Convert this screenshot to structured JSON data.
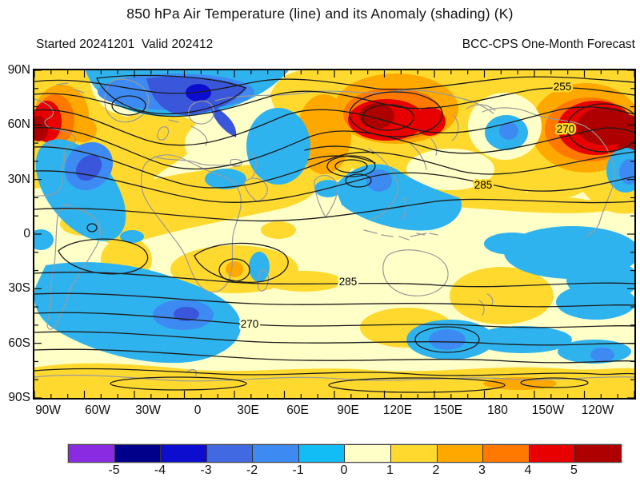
{
  "header": {
    "title": "850 hPa Air Temperature (line) and its Anomaly (shading) (K)",
    "run_info": "Started 20241201  Valid 202412",
    "model_info": "BCC-CPS One-Month Forecast"
  },
  "axes": {
    "lat_labels": [
      "90N",
      "60N",
      "30N",
      "0",
      "30S",
      "60S",
      "90S"
    ],
    "lon_labels": [
      "90W",
      "60W",
      "30W",
      "0",
      "30E",
      "60E",
      "90E",
      "120E",
      "150E",
      "180",
      "150W",
      "120W"
    ]
  },
  "contour_labels": [
    "255",
    "270",
    "285",
    "285",
    "270"
  ],
  "colorbar": {
    "tick_labels": [
      "-5",
      "-4",
      "-3",
      "-2",
      "-1",
      "0",
      "1",
      "2",
      "3",
      "4",
      "5"
    ],
    "colors": [
      "#8A2BE2",
      "#00008B",
      "#0D0DD0",
      "#4169E1",
      "#3D8BF2",
      "#12BDF5",
      "#FFFFC8",
      "#FFD92E",
      "#FFA800",
      "#FF7800",
      "#E80000",
      "#AE0000"
    ]
  },
  "chart_data": {
    "type": "heatmap",
    "subtype": "filled-contour world map: temperature contours (line) over anomaly shading",
    "title": "850 hPa Air Temperature (line) and its Anomaly (shading) (K)",
    "init_label": "Started 20241201",
    "valid_label": "Valid 202412",
    "model": "BCC-CPS One-Month Forecast",
    "lon_ticks": [
      "90W",
      "60W",
      "30W",
      "0",
      "30E",
      "60E",
      "90E",
      "120E",
      "150E",
      "180",
      "150W",
      "120W"
    ],
    "lat_ticks": [
      "90N",
      "60N",
      "30N",
      "0",
      "30S",
      "60S",
      "90S"
    ],
    "contour_variable": "850 hPa air temperature (K)",
    "labeled_contour_levels": [
      255,
      270,
      285
    ],
    "shading_variable": "temperature anomaly (K)",
    "shading_levels": [
      -5,
      -4,
      -3,
      -2,
      -1,
      0,
      1,
      2,
      3,
      4,
      5
    ],
    "shading_colors": [
      "#8A2BE2",
      "#00008B",
      "#0D0DD0",
      "#4169E1",
      "#3D8BF2",
      "#12BDF5",
      "#FFFFC8",
      "#FFD92E",
      "#FFA800",
      "#FF7800",
      "#E80000",
      "#AE0000"
    ],
    "anomaly_centers": [
      {
        "region": "northeast Canada / Labrador",
        "sign": "warm",
        "peak_K": "+5 or more"
      },
      {
        "region": "central Siberia",
        "sign": "warm",
        "peak_K": "+5 or more"
      },
      {
        "region": "Alaska / northwest North America",
        "sign": "warm",
        "peak_K": "+5 or more"
      },
      {
        "region": "eastern Europe / western Russia",
        "sign": "warm",
        "peak_K": "+3 to +4"
      },
      {
        "region": "Greenland / Arctic",
        "sign": "cold",
        "peak_K": "-4 to -3"
      },
      {
        "region": "western North Atlantic",
        "sign": "cold",
        "peak_K": "-3 to -2"
      },
      {
        "region": "Scandinavia / northern Europe",
        "sign": "cold",
        "peak_K": "-1 to 0"
      },
      {
        "region": "Bering Sea",
        "sign": "cold",
        "peak_K": "-2 to -1"
      },
      {
        "region": "East Asia coast / Japan",
        "sign": "cold",
        "peak_K": "-2 to -1"
      },
      {
        "region": "South Atlantic off Argentina",
        "sign": "cold",
        "peak_K": "-2 to -1"
      },
      {
        "region": "northern Australia",
        "sign": "cold",
        "peak_K": "-2 to -1"
      },
      {
        "region": "southern Africa",
        "sign": "warm",
        "peak_K": "+2 to +3"
      },
      {
        "region": "New Zealand / southwest Pacific",
        "sign": "warm",
        "peak_K": "+1 to +2"
      },
      {
        "region": "Antarctic coastal band",
        "sign": "warm",
        "peak_K": "+1 to +3"
      }
    ]
  }
}
